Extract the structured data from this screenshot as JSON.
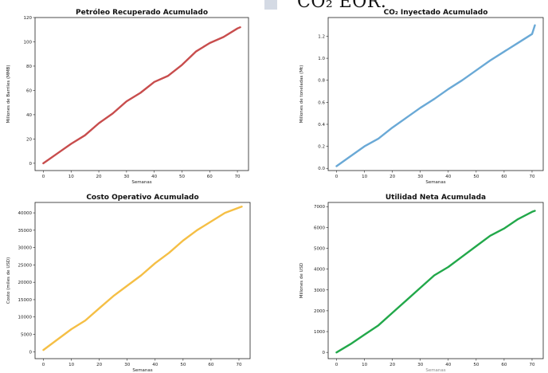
{
  "header": {
    "text": "CO₂ EOR."
  },
  "chart_data": [
    {
      "type": "line",
      "title": "Petróleo Recuperado Acumulado",
      "xlabel": "Semanas",
      "ylabel": "Millones de Barriles (MMB)",
      "xlim": [
        -3,
        74
      ],
      "ylim": [
        -6,
        120
      ],
      "xticks": [
        0,
        10,
        20,
        30,
        40,
        50,
        60,
        70
      ],
      "yticks": [
        0,
        20,
        40,
        60,
        80,
        100,
        120
      ],
      "color": "#c84d4d",
      "x": [
        0,
        5,
        10,
        15,
        20,
        25,
        30,
        35,
        40,
        45,
        50,
        55,
        60,
        65,
        70,
        71
      ],
      "y": [
        0,
        8,
        16,
        23,
        33,
        41,
        51,
        58,
        67,
        72,
        81,
        92,
        99,
        104,
        111,
        112
      ]
    },
    {
      "type": "line",
      "title": "CO₂ Inyectado Acumulado",
      "xlabel": "Semanas",
      "ylabel": "Millones de toneladas (Mt)",
      "xlim": [
        -3,
        74
      ],
      "ylim": [
        -0.02,
        1.37
      ],
      "xticks": [
        0,
        10,
        20,
        30,
        40,
        50,
        60,
        70
      ],
      "yticks": [
        0.0,
        0.2,
        0.4,
        0.6,
        0.8,
        1.0,
        1.2
      ],
      "color": "#6aa9d6",
      "x": [
        0,
        5,
        10,
        15,
        20,
        25,
        30,
        35,
        40,
        45,
        50,
        55,
        60,
        65,
        70,
        71
      ],
      "y": [
        0.02,
        0.11,
        0.2,
        0.27,
        0.37,
        0.46,
        0.55,
        0.63,
        0.72,
        0.8,
        0.89,
        0.98,
        1.06,
        1.14,
        1.22,
        1.3
      ]
    },
    {
      "type": "line",
      "title": "Costo Operativo Acumulado",
      "xlabel": "Semanas",
      "ylabel": "Costo (miles de USD)",
      "xlim": [
        -3,
        74
      ],
      "ylim": [
        -2000,
        43000
      ],
      "xticks": [
        0,
        10,
        20,
        30,
        40,
        50,
        60,
        70
      ],
      "yticks": [
        0,
        5000,
        10000,
        15000,
        20000,
        25000,
        30000,
        35000,
        40000
      ],
      "color": "#f5bf45",
      "x": [
        0,
        5,
        10,
        15,
        20,
        25,
        30,
        35,
        40,
        45,
        50,
        55,
        60,
        65,
        70,
        71
      ],
      "y": [
        500,
        3500,
        6500,
        9000,
        12500,
        16000,
        19000,
        22000,
        25500,
        28500,
        32000,
        35000,
        37500,
        40000,
        41500,
        41800
      ]
    },
    {
      "type": "line",
      "title": "Utilidad Neta Acumulada",
      "xlabel": "Semanas",
      "ylabel": "Millones de USD",
      "xlim": [
        -3,
        74
      ],
      "ylim": [
        -300,
        7200
      ],
      "xticks": [
        0,
        10,
        20,
        30,
        40,
        50,
        60,
        70
      ],
      "yticks": [
        0,
        1000,
        2000,
        3000,
        4000,
        5000,
        6000,
        7000
      ],
      "color": "#22a84a",
      "x": [
        0,
        5,
        10,
        15,
        20,
        25,
        30,
        35,
        40,
        45,
        50,
        55,
        60,
        65,
        70,
        71
      ],
      "y": [
        0,
        400,
        850,
        1300,
        1900,
        2500,
        3100,
        3700,
        4100,
        4600,
        5100,
        5600,
        5950,
        6400,
        6750,
        6800
      ]
    }
  ]
}
